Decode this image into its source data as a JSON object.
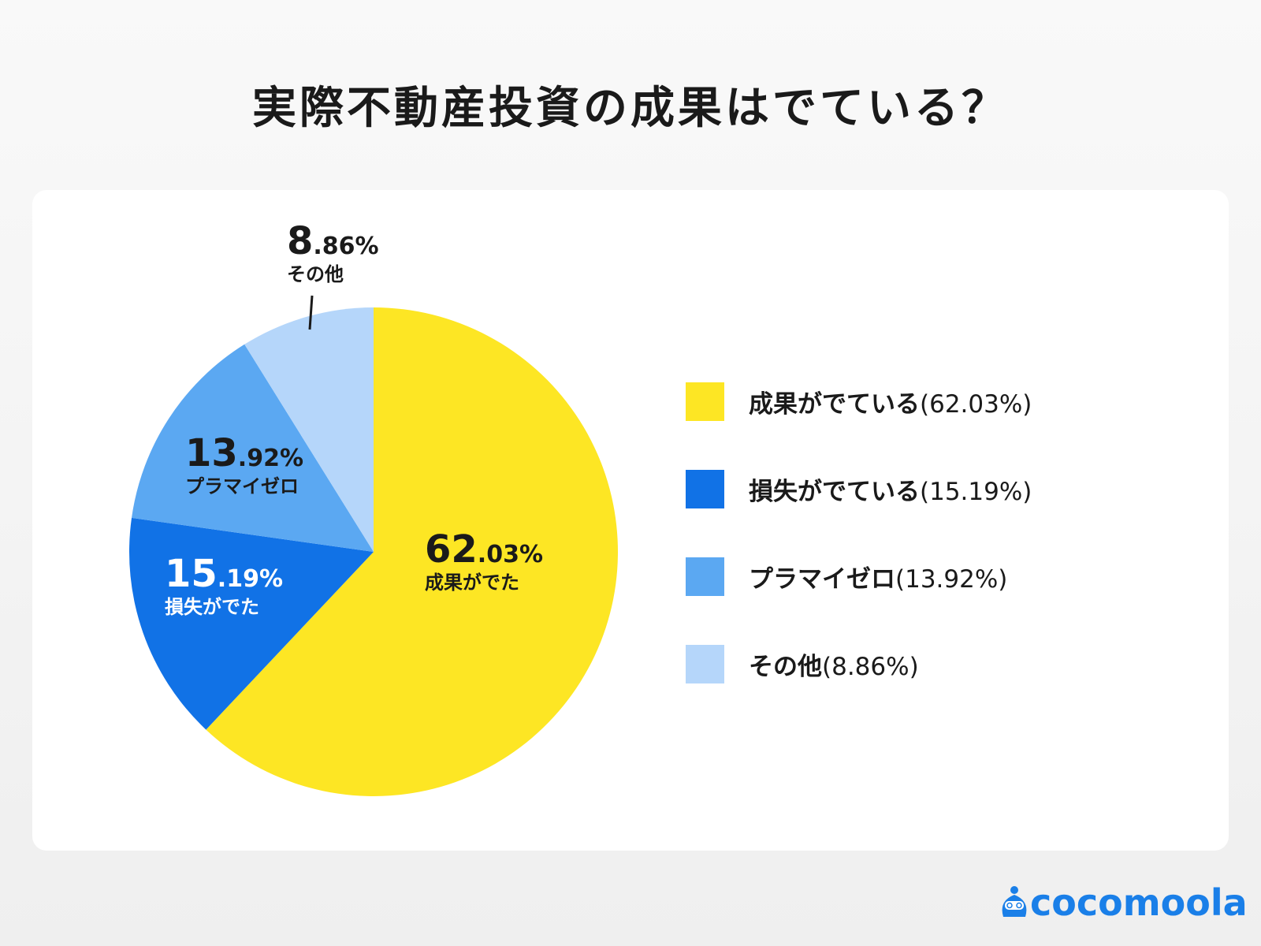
{
  "title": "実際不動産投資の成果はでている？",
  "chart_data": {
    "type": "pie",
    "title": "実際不動産投資の成果はでている？",
    "start": "top, clockwise",
    "legend_position": "right",
    "slices": [
      {
        "label": "成果がでている",
        "short": "成果がでた",
        "value": 62.03,
        "color": "#fde624",
        "big": "62",
        "small": ".03%",
        "text_color": "#1a1a1a",
        "legend": "(62.03%)"
      },
      {
        "label": "損失がでている",
        "short": "損失がでた",
        "value": 15.19,
        "color": "#1172e6",
        "big": "15",
        "small": ".19%",
        "text_color": "#ffffff",
        "legend": "(15.19%)"
      },
      {
        "label": "プラマイゼロ",
        "short": "プラマイゼロ",
        "value": 13.92,
        "color": "#5ba8f2",
        "big": "13",
        "small": ".92%",
        "text_color": "#1a1a1a",
        "legend": "(13.92%)"
      },
      {
        "label": "その他",
        "short": "その他",
        "value": 8.86,
        "color": "#b5d6fa",
        "big": "8",
        "small": ".86%",
        "text_color": "#1a1a1a",
        "legend": "(8.86%)"
      }
    ]
  },
  "logo": {
    "text": "cocomoola",
    "color": "#1a7fe8"
  }
}
